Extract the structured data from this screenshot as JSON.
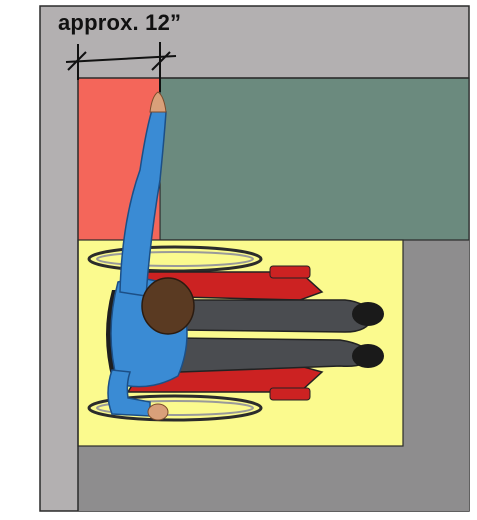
{
  "dimension": {
    "label": "approx. 12”"
  },
  "colors": {
    "wall": "#b3b0b1",
    "wall_dark": "#8e8d8e",
    "reach_zone": "#f4665a",
    "counter": "#6b8a7e",
    "clear_floor_space": "#fbfa8e",
    "outline": "#2b2b2b",
    "shirt": "#3a8bd4",
    "pants": "#4a4c50",
    "hair": "#5a3a22",
    "skin": "#d9a07a",
    "wheelchair_frame": "#cc2222"
  },
  "icons": [
    "wheelchair-user-icon",
    "dimension-arrow-icon"
  ]
}
